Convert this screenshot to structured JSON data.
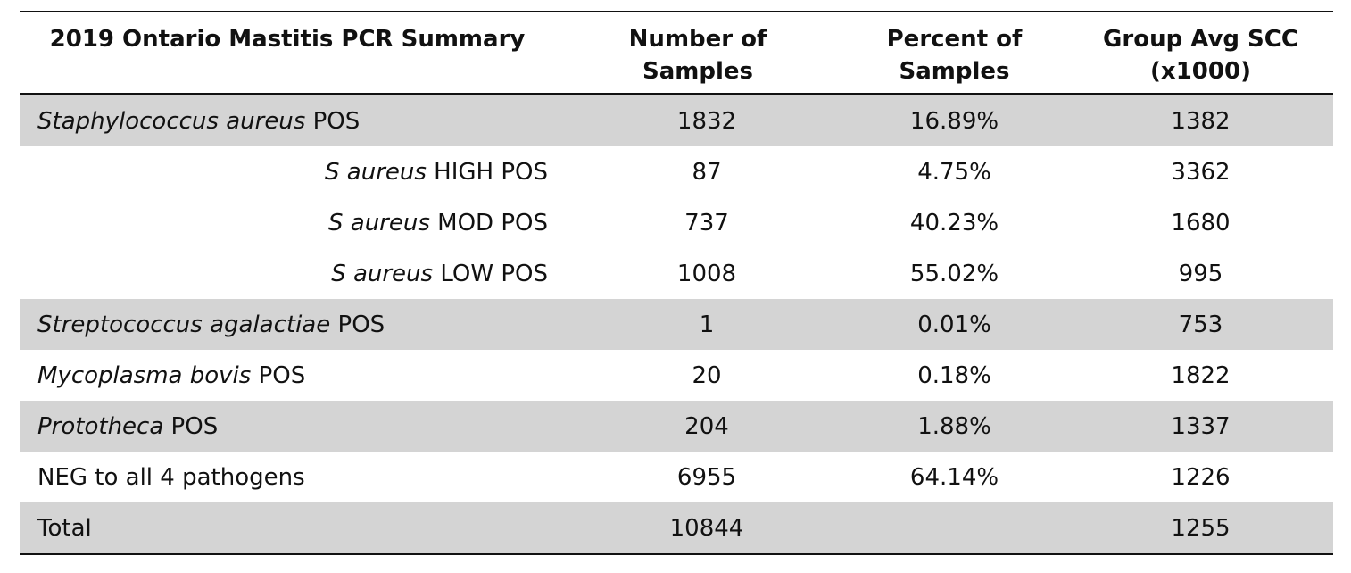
{
  "header": {
    "col1": "2019 Ontario Mastitis PCR Summary",
    "col2_line1": "Number of",
    "col2_line2": "Samples",
    "col3_line1": "Percent of",
    "col3_line2": "Samples",
    "col4_line1": "Group Avg SCC",
    "col4_line2": "(x1000)"
  },
  "rows": [
    {
      "name_italic": "Staphylococcus aureus",
      "name_rest": " POS",
      "count": "1832",
      "percent": "16.89%",
      "scc": "1382"
    },
    {
      "name_italic": "S aureus",
      "name_rest": " HIGH POS",
      "count": "87",
      "percent": "4.75%",
      "scc": "3362"
    },
    {
      "name_italic": "S aureus",
      "name_rest": " MOD POS",
      "count": "737",
      "percent": "40.23%",
      "scc": "1680"
    },
    {
      "name_italic": "S aureus",
      "name_rest": " LOW POS",
      "count": "1008",
      "percent": "55.02%",
      "scc": "995"
    },
    {
      "name_italic": "Streptococcus agalactiae",
      "name_rest": " POS",
      "count": "1",
      "percent": "0.01%",
      "scc": "753"
    },
    {
      "name_italic": "Mycoplasma bovis",
      "name_rest": " POS",
      "count": "20",
      "percent": "0.18%",
      "scc": "1822"
    },
    {
      "name_italic": "Prototheca",
      "name_rest": " POS",
      "count": "204",
      "percent": "1.88%",
      "scc": "1337"
    },
    {
      "name_italic": "",
      "name_rest": "NEG to all 4 pathogens",
      "count": "6955",
      "percent": "64.14%",
      "scc": "1226"
    },
    {
      "name_italic": "",
      "name_rest": "Total",
      "count": "10844",
      "percent": "",
      "scc": "1255"
    }
  ]
}
